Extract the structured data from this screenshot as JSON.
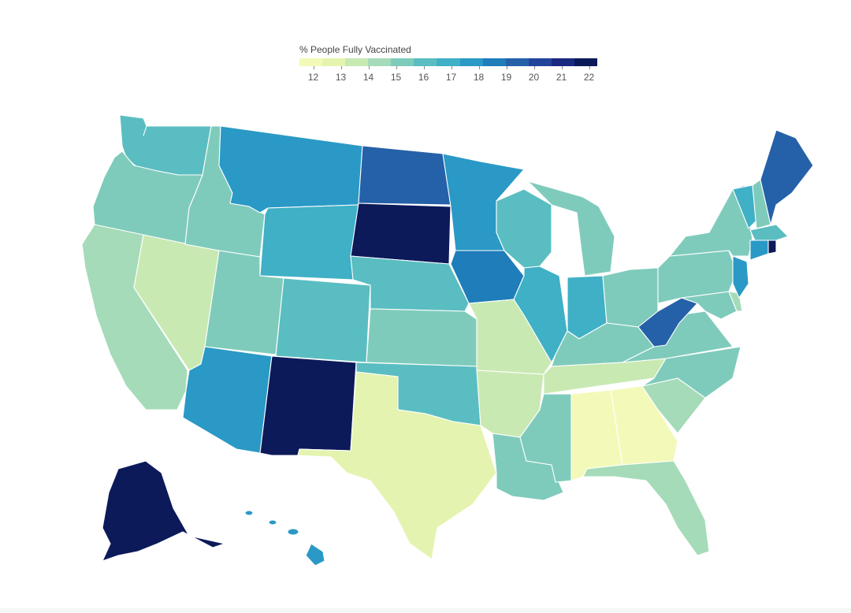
{
  "legend": {
    "title": "% People Fully Vaccinated",
    "ticks": [
      "12",
      "13",
      "14",
      "15",
      "16",
      "17",
      "18",
      "19",
      "20",
      "21",
      "22"
    ],
    "min": 11.5,
    "max": 22.3
  },
  "palette": [
    "#f3fab9",
    "#e4f4b0",
    "#c9e9b3",
    "#a5dbb8",
    "#7fcbbb",
    "#5abdc1",
    "#3fb0c6",
    "#2a99c6",
    "#1f7db9",
    "#2561a8",
    "#22449a",
    "#1a2a7f",
    "#0c1a5a"
  ],
  "states": {
    "WA": 16.2,
    "OR": 15.3,
    "CA": 14.0,
    "NV": 13.8,
    "ID": 15.1,
    "MT": 17.5,
    "WY": 16.5,
    "UT": 15.2,
    "AZ": 17.6,
    "CO": 16.4,
    "NM": 22.0,
    "ND": 19.2,
    "SD": 22.2,
    "NE": 16.1,
    "KS": 15.3,
    "OK": 16.2,
    "TX": 12.6,
    "MN": 17.6,
    "IA": 18.3,
    "MO": 13.9,
    "AR": 13.2,
    "LA": 15.1,
    "WI": 16.3,
    "IL": 17.2,
    "MI": 15.2,
    "IN": 17.1,
    "OH": 15.2,
    "KY": 15.3,
    "TN": 13.6,
    "MS": 15.3,
    "AL": 12.2,
    "GA": 12.3,
    "FL": 14.2,
    "SC": 14.0,
    "NC": 15.2,
    "VA": 15.3,
    "WV": 19.5,
    "PA": 15.1,
    "NY": 15.0,
    "VT": 16.6,
    "NH": 15.4,
    "ME": 19.3,
    "MA": 16.4,
    "RI": 21.5,
    "CT": 17.8,
    "NJ": 17.6,
    "DE": 14.2,
    "MD": 15.2,
    "AK": 21.6,
    "HI": 17.5
  }
}
